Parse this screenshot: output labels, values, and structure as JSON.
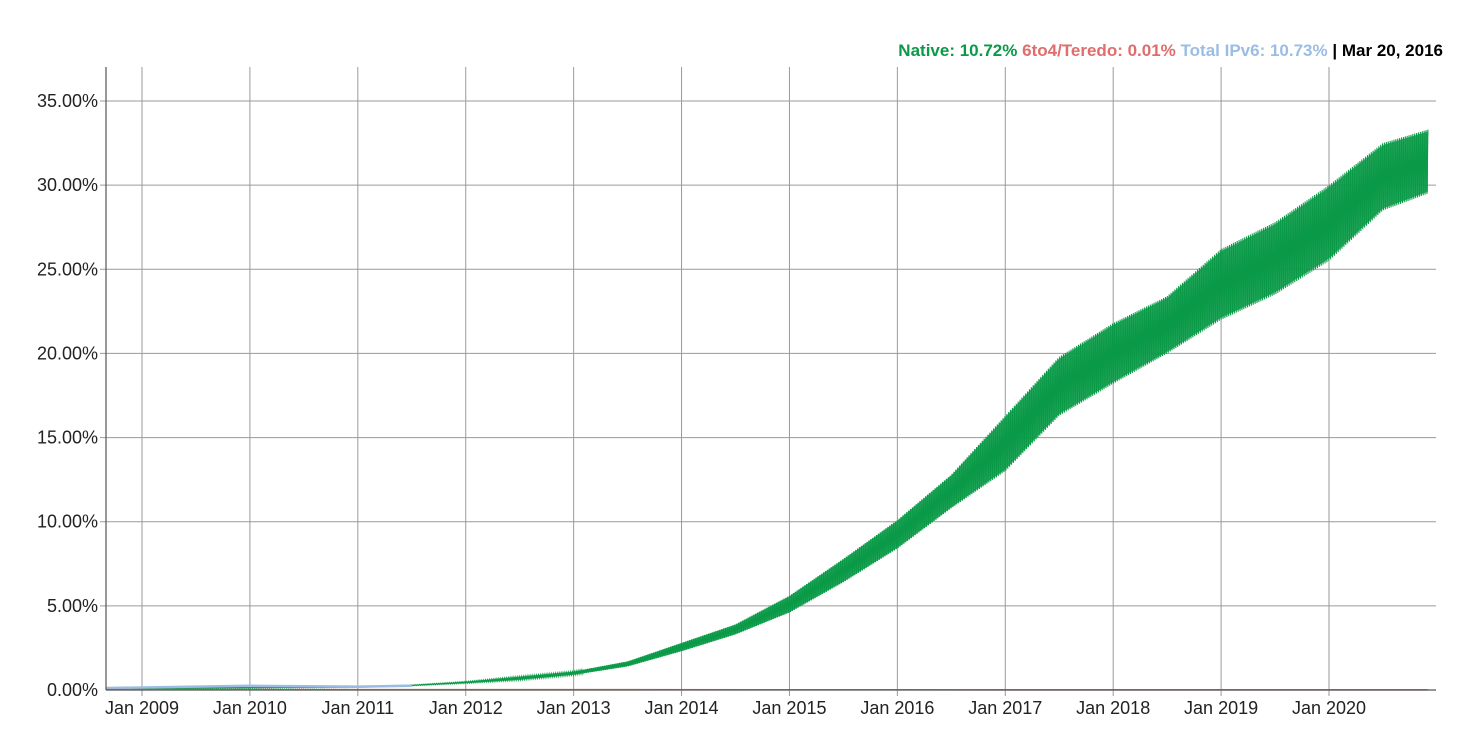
{
  "legend": {
    "native_label": "Native: 10.72%",
    "teredo_label": "6to4/Teredo: 0.01%",
    "total_label": "Total IPv6: 10.73%",
    "separator": "|",
    "date": "Mar 20, 2016",
    "colors": {
      "native": "#0a9a48",
      "teredo": "#e06c6c",
      "total": "#9bbde4",
      "date": "#000000"
    }
  },
  "chart_data": {
    "type": "area",
    "title": "",
    "xlabel": "",
    "ylabel": "",
    "ylim": [
      0,
      37
    ],
    "xlim": [
      "2008-09",
      "2020-12"
    ],
    "grid": true,
    "legend_position": "top-right",
    "y_ticks": [
      "0.00%",
      "5.00%",
      "10.00%",
      "15.00%",
      "20.00%",
      "25.00%",
      "30.00%",
      "35.00%"
    ],
    "y_tick_values": [
      0,
      5,
      10,
      15,
      20,
      25,
      30,
      35
    ],
    "x_ticks": [
      "Jan 2009",
      "Jan 2010",
      "Jan 2011",
      "Jan 2012",
      "Jan 2013",
      "Jan 2014",
      "Jan 2015",
      "Jan 2016",
      "Jan 2017",
      "Jan 2018",
      "Jan 2019",
      "Jan 2020"
    ],
    "series": [
      {
        "name": "Native",
        "color": "#0a9a48",
        "x": [
          "2008-09",
          "2009-01",
          "2010-01",
          "2011-01",
          "2011-07",
          "2012-01",
          "2012-07",
          "2013-01",
          "2013-07",
          "2014-01",
          "2014-07",
          "2015-01",
          "2015-07",
          "2016-01",
          "2016-07",
          "2017-01",
          "2017-07",
          "2018-01",
          "2018-07",
          "2019-01",
          "2019-07",
          "2020-01",
          "2020-07",
          "2020-12"
        ],
        "low": [
          0.05,
          0.05,
          0.1,
          0.15,
          0.25,
          0.4,
          0.6,
          0.9,
          1.4,
          2.3,
          3.3,
          4.6,
          6.4,
          8.4,
          10.8,
          13.0,
          16.3,
          18.2,
          20.0,
          22.0,
          23.5,
          25.5,
          28.5,
          29.5
        ],
        "high": [
          0.1,
          0.1,
          0.2,
          0.2,
          0.3,
          0.5,
          0.8,
          1.1,
          1.7,
          2.8,
          3.9,
          5.6,
          7.8,
          10.1,
          12.8,
          16.3,
          19.8,
          21.8,
          23.4,
          26.2,
          27.8,
          30.0,
          32.5,
          33.3
        ]
      },
      {
        "name": "6to4/Teredo",
        "color": "#e06c6c",
        "x": [
          "2008-09",
          "2020-12"
        ],
        "values": [
          0.02,
          0.01
        ]
      },
      {
        "name": "Total IPv6",
        "color": "#9bbde4",
        "x": [
          "2008-09",
          "2009-01",
          "2010-01",
          "2011-01",
          "2011-07"
        ],
        "values": [
          0.12,
          0.15,
          0.25,
          0.2,
          0.25
        ]
      }
    ]
  }
}
